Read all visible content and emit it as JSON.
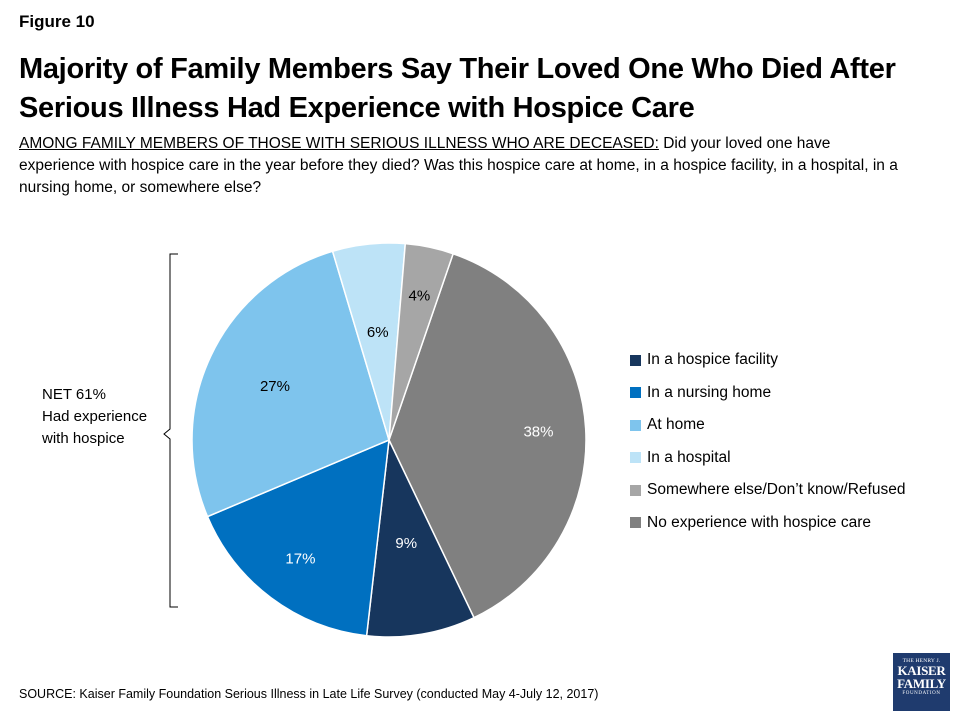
{
  "figure_label": "Figure 10",
  "title": "Majority of Family Members Say Their Loved One Who Died After Serious Illness Had Experience with Hospice Care",
  "subtitle_lead": "AMONG FAMILY MEMBERS OF THOSE WITH SERIOUS ILLNESS WHO ARE DECEASED:",
  "subtitle_rest": " Did your loved one have experience with hospice care in the year before they died? Was this hospice care at home, in a hospice facility, in a hospital, in a nursing home, or somewhere else?",
  "net": {
    "value": "NET 61%",
    "desc": "Had experience with hospice"
  },
  "source": "SOURCE: Kaiser Family Foundation Serious Illness in Late Life Survey (conducted May 4-July 12, 2017)",
  "logo": {
    "line1": "THE HENRY J.",
    "line2": "KAISER",
    "line3": "FAMILY",
    "line4": "FOUNDATION"
  },
  "chart_data": {
    "type": "pie",
    "slices": [
      {
        "name": "In a hospice facility",
        "value": 9,
        "label": "9%",
        "color": "#17365d",
        "label_color": "#ffffff"
      },
      {
        "name": "In a nursing home",
        "value": 17,
        "label": "17%",
        "color": "#0070c0",
        "label_color": "#ffffff"
      },
      {
        "name": "At home",
        "value": 27,
        "label": "27%",
        "color": "#7ec4ed",
        "label_color": "#000000"
      },
      {
        "name": "In a hospital",
        "value": 6,
        "label": "6%",
        "color": "#bde3f7",
        "label_color": "#000000"
      },
      {
        "name": "Somewhere else/Don’t know/Refused",
        "value": 4,
        "label": "4%",
        "color": "#a6a6a6",
        "label_color": "#000000"
      },
      {
        "name": "No experience with hospice care",
        "value": 38,
        "label": "38%",
        "color": "#808080",
        "label_color": "#ffffff"
      }
    ],
    "legend_position": "right"
  }
}
